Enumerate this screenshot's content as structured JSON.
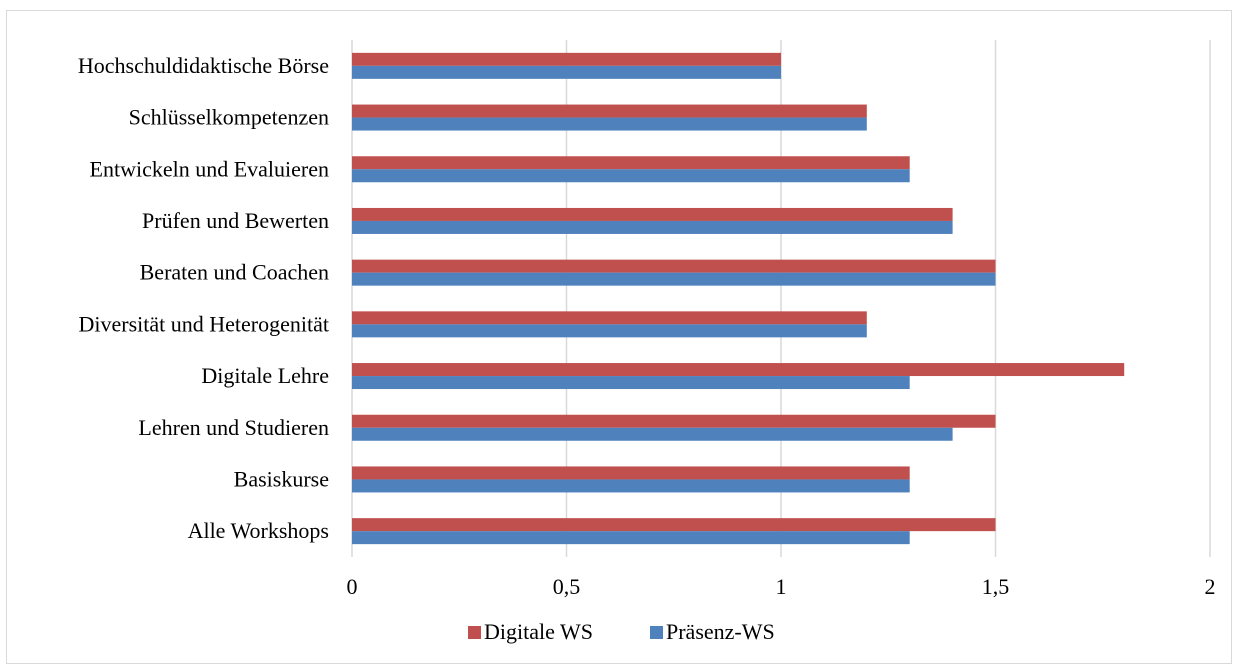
{
  "chart_data": {
    "type": "bar",
    "orientation": "horizontal",
    "categories": [
      "Alle Workshops",
      "Basiskurse",
      "Lehren und Studieren",
      "Digitale Lehre",
      "Diversität und Heterogenität",
      "Beraten und Coachen",
      "Prüfen und Bewerten",
      "Entwickeln und Evaluieren",
      "Schlüsselkompetenzen",
      "Hochschuldidaktische Börse"
    ],
    "series": [
      {
        "name": "Digitale WS",
        "color": "#c0504d",
        "values": [
          1.5,
          1.3,
          1.5,
          1.8,
          1.2,
          1.5,
          1.4,
          1.3,
          1.2,
          1.0
        ]
      },
      {
        "name": "Präsenz-WS",
        "color": "#4f81bd",
        "values": [
          1.3,
          1.3,
          1.4,
          1.3,
          1.2,
          1.5,
          1.4,
          1.3,
          1.2,
          1.0
        ]
      }
    ],
    "xlim": [
      0,
      2
    ],
    "xticks": [
      0,
      0.5,
      1,
      1.5,
      2
    ],
    "xtick_labels": [
      "0",
      "0,5",
      "1",
      "1,5",
      "2"
    ],
    "grid": true,
    "legend_position": "bottom"
  }
}
